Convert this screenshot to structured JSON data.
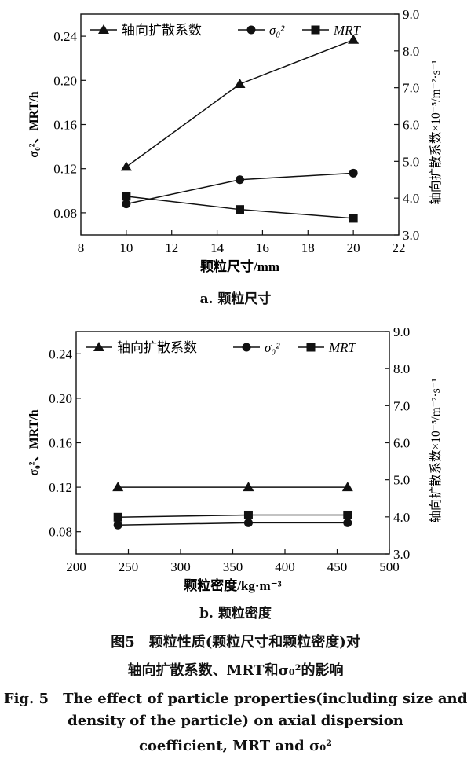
{
  "chart_data": [
    {
      "type": "line",
      "subtitle": "a. 颗粒尺寸",
      "xlabel": "颗粒尺寸/mm",
      "ylabel_left": "σ₀²、MRT/h",
      "ylabel_right": "轴向扩散系数×10⁻⁵/m⁻²·s⁻¹",
      "xlim": [
        8,
        22
      ],
      "ylim_left": [
        0.06,
        0.26
      ],
      "ylim_right": [
        3.0,
        9.0
      ],
      "xticks": [
        "8",
        "10",
        "12",
        "14",
        "16",
        "18",
        "20",
        "22"
      ],
      "yticks_left": [
        "0.08",
        "0.12",
        "0.16",
        "0.20",
        "0.24"
      ],
      "yticks_right": [
        "3.0",
        "4.0",
        "5.0",
        "6.0",
        "7.0",
        "8.0",
        "9.0"
      ],
      "legend_position": "top",
      "series": [
        {
          "name": "轴向扩散系数",
          "axis": "right",
          "marker": "triangle",
          "x": [
            10,
            15,
            20
          ],
          "values": [
            4.85,
            7.1,
            8.3
          ]
        },
        {
          "name": "σ₀²",
          "axis": "left",
          "marker": "circle",
          "x": [
            10,
            15,
            20
          ],
          "values": [
            0.088,
            0.11,
            0.116
          ]
        },
        {
          "name": "MRT",
          "axis": "left",
          "marker": "square",
          "x": [
            10,
            15,
            20
          ],
          "values": [
            0.095,
            0.083,
            0.075
          ]
        }
      ]
    },
    {
      "type": "line",
      "subtitle": "b. 颗粒密度",
      "xlabel": "颗粒密度/kg·m⁻³",
      "ylabel_left": "σ₀²、MRT/h",
      "ylabel_right": "轴向扩散系数×10⁻⁵/m⁻²·s⁻¹",
      "xlim": [
        200,
        500
      ],
      "ylim_left": [
        0.06,
        0.26
      ],
      "ylim_right": [
        3.0,
        9.0
      ],
      "xticks": [
        "200",
        "250",
        "300",
        "350",
        "400",
        "450",
        "500"
      ],
      "yticks_left": [
        "0.08",
        "0.12",
        "0.16",
        "0.20",
        "0.24"
      ],
      "yticks_right": [
        "3.0",
        "4.0",
        "5.0",
        "6.0",
        "7.0",
        "8.0",
        "9.0"
      ],
      "legend_position": "top",
      "series": [
        {
          "name": "轴向扩散系数",
          "axis": "right",
          "marker": "triangle",
          "x": [
            240,
            365,
            460
          ],
          "values": [
            4.8,
            4.8,
            4.8
          ]
        },
        {
          "name": "σ₀²",
          "axis": "left",
          "marker": "circle",
          "x": [
            240,
            365,
            460
          ],
          "values": [
            0.086,
            0.088,
            0.088
          ]
        },
        {
          "name": "MRT",
          "axis": "left",
          "marker": "square",
          "x": [
            240,
            365,
            460
          ],
          "values": [
            0.093,
            0.095,
            0.095
          ]
        }
      ]
    }
  ],
  "caption": {
    "cn_line1": "图5　颗粒性质(颗粒尺寸和颗粒密度)对",
    "cn_line2": "轴向扩散系数、MRT和σ₀²的影响",
    "en_line1": "Fig. 5　The effect of particle properties(including size and",
    "en_line2": "density of the particle) on axial dispersion",
    "en_line3": "coefficient, MRT and σ₀²"
  }
}
